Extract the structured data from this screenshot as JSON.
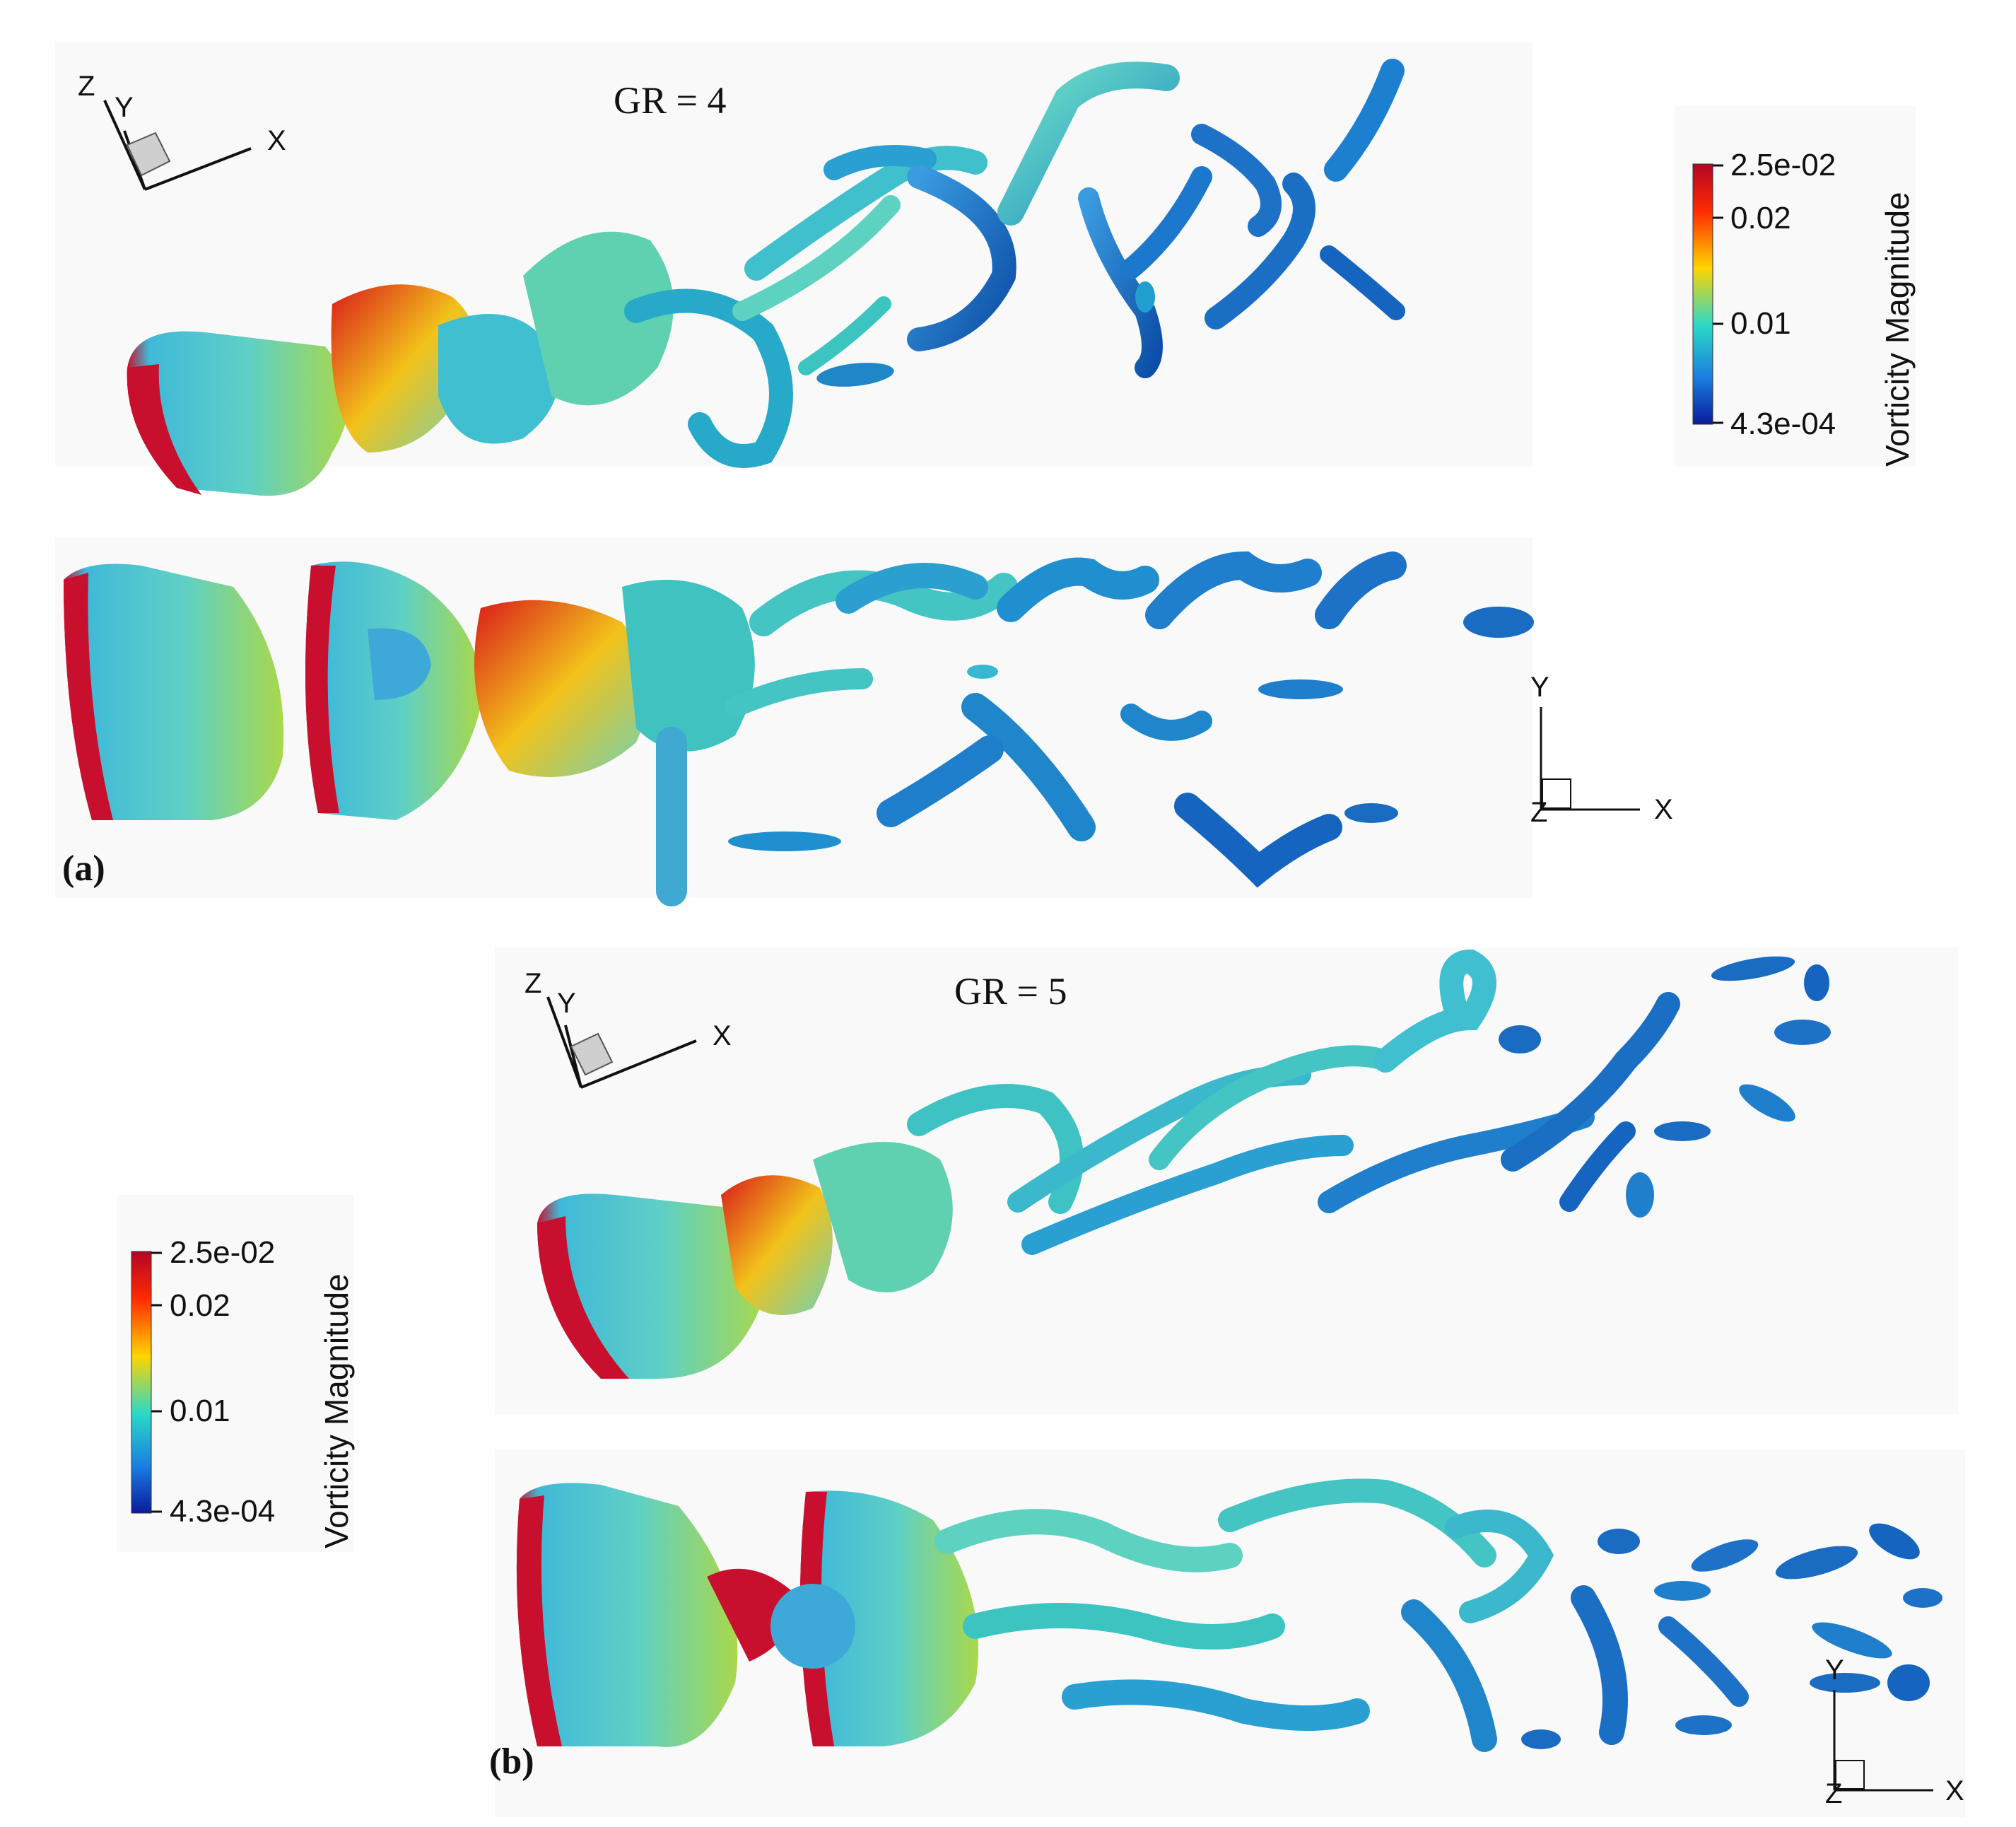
{
  "panels": [
    {
      "label": "(a)",
      "title": "GR = 4",
      "triad_3d": {
        "x": "X",
        "y": "Y",
        "z": "Z"
      },
      "triad_2d": {
        "x": "X",
        "y": "Y",
        "z": "Z"
      }
    },
    {
      "label": "(b)",
      "title": "GR = 5",
      "triad_3d": {
        "x": "X",
        "y": "Y",
        "z": "Z"
      },
      "triad_2d": {
        "x": "X",
        "y": "Y",
        "z": "Z"
      }
    }
  ],
  "colorbar": {
    "title": "Vorticity Magnitude",
    "ticks": [
      "2.5e-02",
      "0.02",
      "0.01",
      "4.3e-04"
    ],
    "colors": [
      "#b40426",
      "#ff2a00",
      "#ffd400",
      "#2bd9c7",
      "#1a7fe0",
      "#0a1a9c"
    ]
  },
  "surface_colors": {
    "low": "#1565c0",
    "mid": "#3cc4b8",
    "high": "#c8102e",
    "yellow": "#d9d22a"
  }
}
